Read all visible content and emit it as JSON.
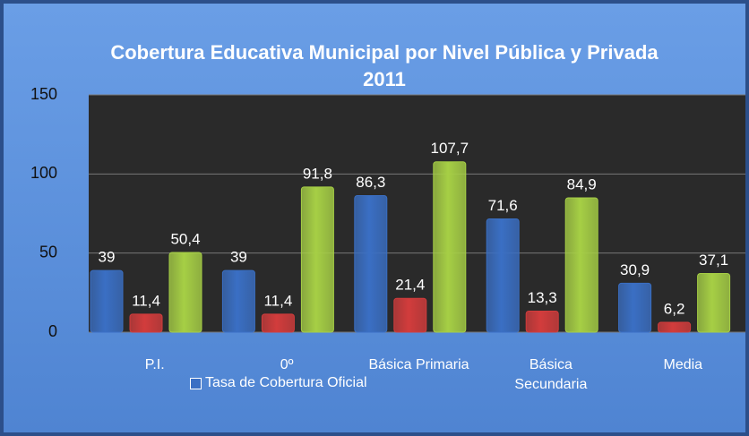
{
  "chart_data": {
    "type": "bar",
    "title": "Cobertura Educativa Municipal por Nivel Pública y Privada 2011",
    "categories": [
      "P.I.",
      "0º",
      "Básica Primaria",
      "Básica Secundaria",
      "Media"
    ],
    "series": [
      {
        "name": "Tasa de Cobertura Oficial",
        "color": "#3a6fc4",
        "values": [
          39,
          39,
          86.3,
          71.6,
          30.9
        ],
        "value_labels": [
          "39",
          "39",
          "86,3",
          "71,6",
          "30,9"
        ]
      },
      {
        "color": "#d23c3c",
        "values": [
          11.4,
          11.4,
          21.4,
          13.3,
          6.2
        ],
        "value_labels": [
          "11,4",
          "11,4",
          "21,4",
          "13,3",
          "6,2"
        ]
      },
      {
        "color": "#a6cf45",
        "values": [
          50.4,
          91.8,
          107.7,
          84.9,
          37.1
        ],
        "value_labels": [
          "50,4",
          "91,8",
          "107,7",
          "84,9",
          "37,1"
        ]
      }
    ],
    "ylim": [
      0,
      150
    ],
    "yticks": [
      0,
      50,
      100,
      150
    ],
    "grid": true
  }
}
